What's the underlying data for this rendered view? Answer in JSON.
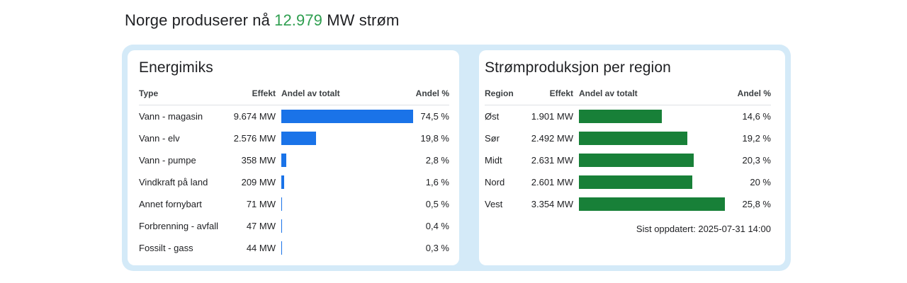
{
  "page": {
    "title_prefix": "Norge produserer nå",
    "title_value": "12.979",
    "title_suffix": "MW strøm"
  },
  "colors": {
    "accent_green": "#2e9e4f",
    "bar_blue": "#1a73e8",
    "bar_green": "#188038",
    "panel_background": "#d4eaf8",
    "card_background": "#ffffff"
  },
  "energy_mix": {
    "title": "Energimiks",
    "columns": {
      "label": "Type",
      "effekt": "Effekt",
      "share": "Andel av totalt",
      "percent": "Andel %"
    },
    "rows": [
      {
        "label": "Vann - magasin",
        "effekt": "9.674 MW",
        "percent": 74.5,
        "percent_label": "74,5 %"
      },
      {
        "label": "Vann - elv",
        "effekt": "2.576 MW",
        "percent": 19.8,
        "percent_label": "19,8 %"
      },
      {
        "label": "Vann - pumpe",
        "effekt": "358 MW",
        "percent": 2.8,
        "percent_label": "2,8 %"
      },
      {
        "label": "Vindkraft på land",
        "effekt": "209 MW",
        "percent": 1.6,
        "percent_label": "1,6 %"
      },
      {
        "label": "Annet fornybart",
        "effekt": "71 MW",
        "percent": 0.5,
        "percent_label": "0,5 %"
      },
      {
        "label": "Forbrenning - avfall",
        "effekt": "47 MW",
        "percent": 0.4,
        "percent_label": "0,4 %"
      },
      {
        "label": "Fossilt - gass",
        "effekt": "44 MW",
        "percent": 0.3,
        "percent_label": "0,3 %"
      }
    ]
  },
  "region_production": {
    "title": "Strømproduksjon per region",
    "columns": {
      "label": "Region",
      "effekt": "Effekt",
      "share": "Andel av totalt",
      "percent": "Andel %"
    },
    "rows": [
      {
        "label": "Øst",
        "effekt": "1.901 MW",
        "percent": 14.6,
        "percent_label": "14,6 %"
      },
      {
        "label": "Sør",
        "effekt": "2.492 MW",
        "percent": 19.2,
        "percent_label": "19,2 %"
      },
      {
        "label": "Midt",
        "effekt": "2.631 MW",
        "percent": 20.3,
        "percent_label": "20,3 %"
      },
      {
        "label": "Nord",
        "effekt": "2.601 MW",
        "percent": 20.0,
        "percent_label": "20 %"
      },
      {
        "label": "Vest",
        "effekt": "3.354 MW",
        "percent": 25.8,
        "percent_label": "25,8 %"
      }
    ],
    "updated": "Sist oppdatert: 2025-07-31 14:00"
  },
  "chart_data": [
    {
      "type": "bar",
      "orientation": "horizontal",
      "title": "Energimiks",
      "categories": [
        "Vann - magasin",
        "Vann - elv",
        "Vann - pumpe",
        "Vindkraft på land",
        "Annet fornybart",
        "Forbrenning - avfall",
        "Fossilt - gass"
      ],
      "series": [
        {
          "name": "Effekt (MW)",
          "values": [
            9674,
            2576,
            358,
            209,
            71,
            47,
            44
          ]
        },
        {
          "name": "Andel (%)",
          "values": [
            74.5,
            19.8,
            2.8,
            1.6,
            0.5,
            0.4,
            0.3
          ]
        }
      ],
      "xlabel": "Andel av totalt",
      "ylabel": "Type",
      "bar_color": "#1a73e8",
      "grid": false,
      "legend_position": "none"
    },
    {
      "type": "bar",
      "orientation": "horizontal",
      "title": "Strømproduksjon per region",
      "categories": [
        "Øst",
        "Sør",
        "Midt",
        "Nord",
        "Vest"
      ],
      "series": [
        {
          "name": "Effekt (MW)",
          "values": [
            1901,
            2492,
            2631,
            2601,
            3354
          ]
        },
        {
          "name": "Andel (%)",
          "values": [
            14.6,
            19.2,
            20.3,
            20.0,
            25.8
          ]
        }
      ],
      "xlabel": "Andel av totalt",
      "ylabel": "Region",
      "bar_color": "#188038",
      "grid": false,
      "legend_position": "none",
      "annotation": "Sist oppdatert: 2025-07-31 14:00"
    }
  ]
}
